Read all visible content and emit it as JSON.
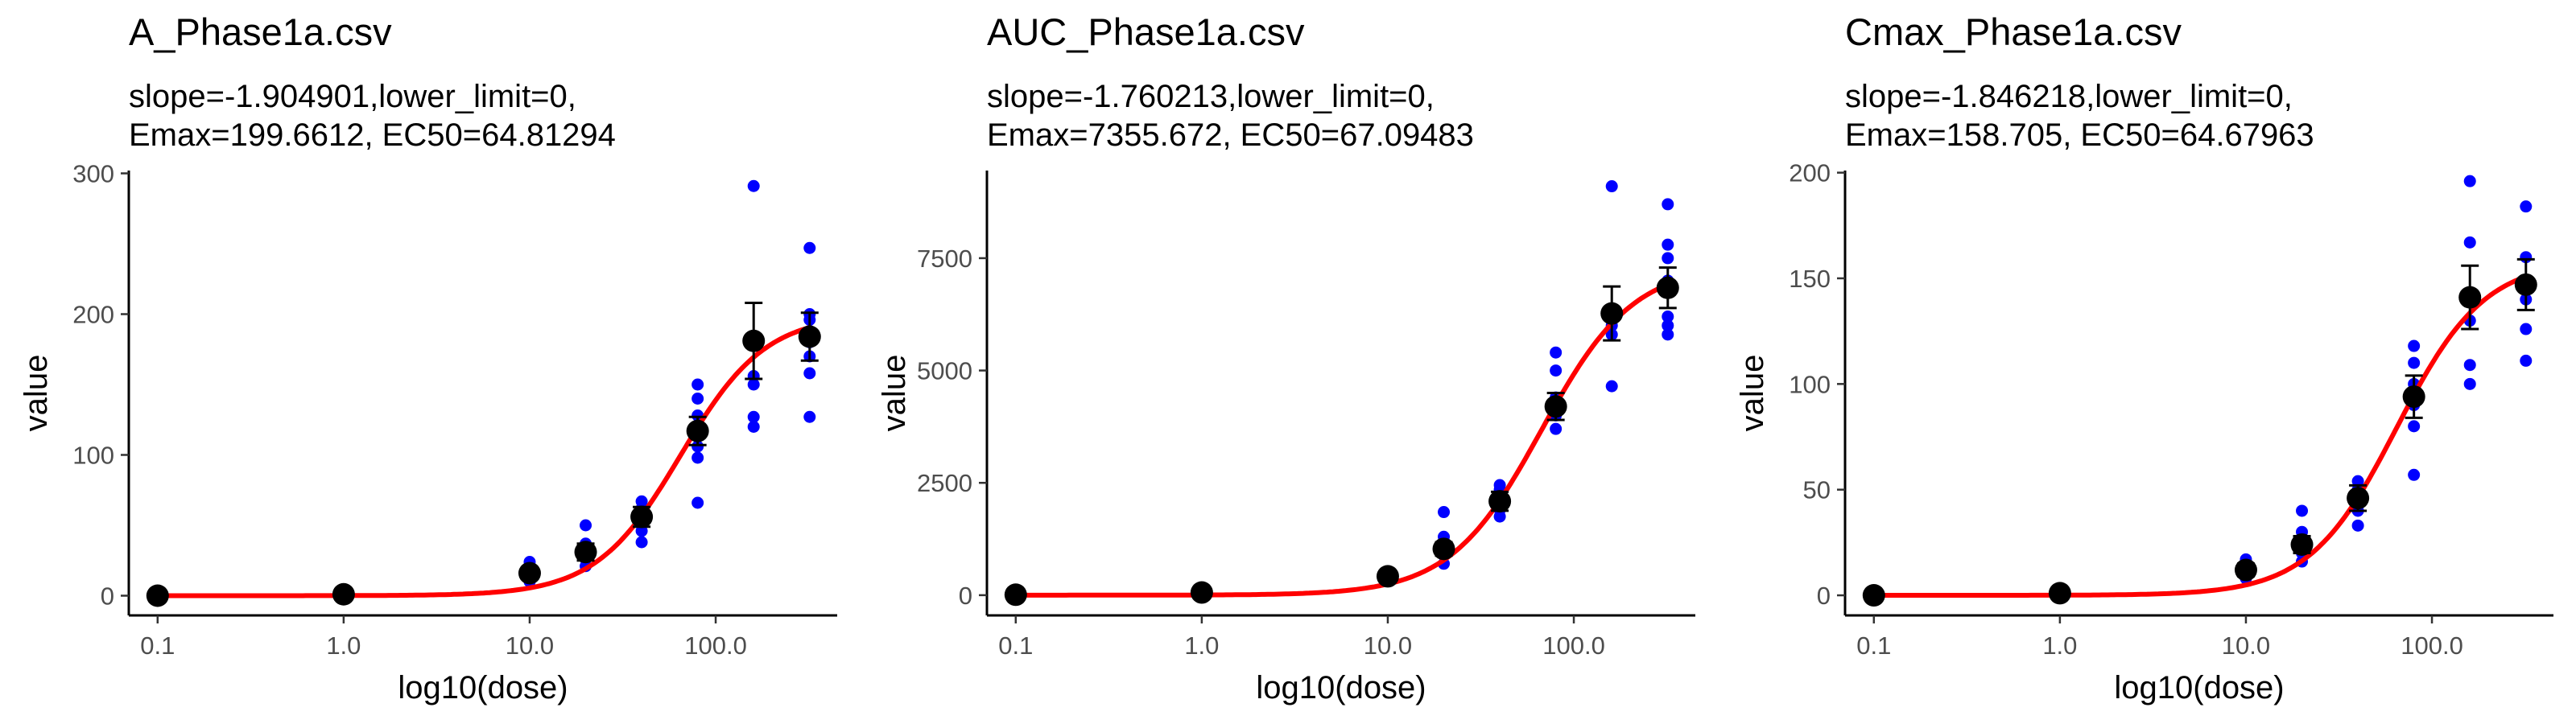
{
  "chart_data": [
    {
      "type": "scatter",
      "title": "A_Phase1a.csv",
      "subtitle_line1": "slope=-1.904901,lower_limit=0,",
      "subtitle_line2": "Emax=199.6612, EC50=64.81294",
      "xlabel": "log10(dose)",
      "ylabel": "value",
      "x_scale": "log10",
      "xlim": [
        0.07,
        450
      ],
      "ylim": [
        -14,
        302
      ],
      "x_ticks": [
        0.1,
        1,
        10,
        100
      ],
      "x_tick_labels": [
        "0.1",
        "1.0",
        "10.0",
        "100.0"
      ],
      "y_ticks": [
        0,
        100,
        200,
        300
      ],
      "y_tick_labels": [
        "0",
        "100",
        "200",
        "300"
      ],
      "fit": {
        "slope": -1.904901,
        "lower_limit": 0,
        "Emax": 199.6612,
        "EC50": 64.81294
      },
      "doses": [
        0.1,
        1,
        10,
        20,
        40,
        80,
        160,
        320
      ],
      "means": [
        0,
        1,
        16,
        31,
        56,
        117,
        181,
        184
      ],
      "errors": [
        0,
        0,
        4,
        6,
        7,
        10,
        27,
        17
      ],
      "points": [
        [
          0
        ],
        [
          1
        ],
        [
          10,
          15,
          18,
          20,
          24
        ],
        [
          21,
          26,
          30,
          34,
          37,
          50
        ],
        [
          38,
          46,
          52,
          57,
          62,
          67
        ],
        [
          66,
          98,
          106,
          118,
          128,
          140,
          150
        ],
        [
          120,
          127,
          150,
          156,
          178,
          291
        ],
        [
          127,
          158,
          170,
          180,
          188,
          196,
          200,
          247
        ]
      ],
      "colors": {
        "points": "#0000ff",
        "fit": "#ff0000",
        "mean": "#000000"
      }
    },
    {
      "type": "scatter",
      "title": "AUC_Phase1a.csv",
      "subtitle_line1": "slope=-1.760213,lower_limit=0,",
      "subtitle_line2": "Emax=7355.672, EC50=67.09483",
      "xlabel": "log10(dose)",
      "ylabel": "value",
      "x_scale": "log10",
      "xlim": [
        0.07,
        450
      ],
      "ylim": [
        -450,
        9450
      ],
      "x_ticks": [
        0.1,
        1,
        10,
        100
      ],
      "x_tick_labels": [
        "0.1",
        "1.0",
        "10.0",
        "100.0"
      ],
      "y_ticks": [
        0,
        2500,
        5000,
        7500
      ],
      "y_tick_labels": [
        "0",
        "2500",
        "5000",
        "7500"
      ],
      "fit": {
        "slope": -1.760213,
        "lower_limit": 0,
        "Emax": 7355.672,
        "EC50": 67.09483
      },
      "doses": [
        0.1,
        1,
        10,
        20,
        40,
        80,
        160,
        320
      ],
      "means": [
        10,
        60,
        420,
        1030,
        2090,
        4200,
        6270,
        6840
      ],
      "errors": [
        0,
        0,
        60,
        150,
        210,
        300,
        600,
        450
      ],
      "points": [
        [
          5
        ],
        [
          60
        ],
        [
          320,
          400,
          460,
          520
        ],
        [
          700,
          900,
          1000,
          1150,
          1300,
          1850
        ],
        [
          1750,
          1900,
          2050,
          2200,
          2350,
          2450
        ],
        [
          3700,
          4000,
          4200,
          4400,
          5000,
          5400
        ],
        [
          4650,
          5800,
          6000,
          6300,
          9100
        ],
        [
          5800,
          6000,
          6200,
          6800,
          7000,
          7500,
          7800,
          8700
        ]
      ],
      "colors": {
        "points": "#0000ff",
        "fit": "#ff0000",
        "mean": "#000000"
      }
    },
    {
      "type": "scatter",
      "title": "Cmax_Phase1a.csv",
      "subtitle_line1": "slope=-1.846218,lower_limit=0,",
      "subtitle_line2": "Emax=158.705, EC50=64.67963",
      "xlabel": "log10(dose)",
      "ylabel": "value",
      "x_scale": "log10",
      "xlim": [
        0.07,
        450
      ],
      "ylim": [
        -9.5,
        201
      ],
      "x_ticks": [
        0.1,
        1,
        10,
        100
      ],
      "x_tick_labels": [
        "0.1",
        "1.0",
        "10.0",
        "100.0"
      ],
      "y_ticks": [
        0,
        50,
        100,
        150,
        200
      ],
      "y_tick_labels": [
        "0",
        "50",
        "100",
        "150",
        "200"
      ],
      "fit": {
        "slope": -1.846218,
        "lower_limit": 0,
        "Emax": 158.705,
        "EC50": 64.67963
      },
      "doses": [
        0.1,
        1,
        10,
        20,
        40,
        80,
        160,
        320
      ],
      "means": [
        0,
        1,
        12,
        24,
        46,
        94,
        141,
        147
      ],
      "errors": [
        0,
        0,
        3,
        4,
        6,
        10,
        15,
        12
      ],
      "points": [
        [
          0
        ],
        [
          1
        ],
        [
          8,
          11,
          14,
          17
        ],
        [
          16,
          20,
          24,
          30,
          40
        ],
        [
          33,
          40,
          45,
          50,
          54
        ],
        [
          57,
          80,
          90,
          100,
          110,
          118
        ],
        [
          100,
          109,
          130,
          140,
          167,
          196
        ],
        [
          111,
          126,
          140,
          148,
          160,
          184
        ]
      ],
      "colors": {
        "points": "#0000ff",
        "fit": "#ff0000",
        "mean": "#000000"
      }
    }
  ]
}
